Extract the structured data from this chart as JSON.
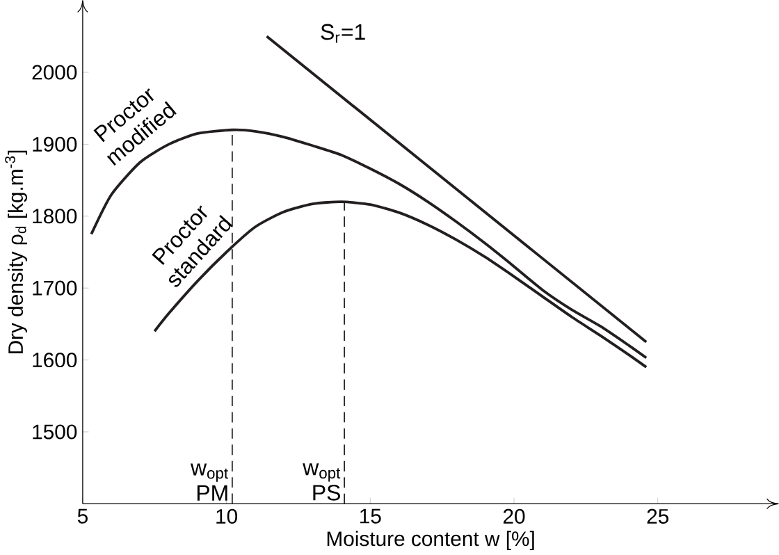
{
  "chart_data": {
    "type": "line",
    "xlabel": "Moisture content w [%]",
    "ylabel": "Dry density ρ$_{d}$ [kg.m$^{-3}$]",
    "xlim": [
      5,
      29.2
    ],
    "ylim": [
      1400,
      2100
    ],
    "xticks": [
      5,
      10,
      15,
      20,
      25
    ],
    "yticks": [
      1500,
      1600,
      1700,
      1800,
      1900,
      2000
    ],
    "grid": false,
    "marker": "none",
    "series": [
      {
        "name": "Proctor modified",
        "color": "#231f20",
        "x": [
          5.3,
          6,
          7,
          8,
          9,
          10.2,
          11,
          12,
          13,
          14,
          15,
          16,
          17,
          18,
          19,
          20,
          21,
          22,
          23,
          24,
          24.6
        ],
        "values": [
          1775,
          1830,
          1875,
          1900,
          1915,
          1920,
          1918,
          1910,
          1898,
          1885,
          1866,
          1845,
          1820,
          1792,
          1762,
          1730,
          1697,
          1670,
          1647,
          1620,
          1603
        ]
      },
      {
        "name": "Proctor standard",
        "color": "#231f20",
        "x": [
          7.5,
          8,
          9,
          10,
          11,
          12,
          13,
          14,
          15,
          16,
          17,
          18,
          19,
          20,
          21,
          22,
          23,
          24,
          24.6
        ],
        "values": [
          1640,
          1665,
          1710,
          1750,
          1785,
          1806,
          1817,
          1820,
          1816,
          1805,
          1788,
          1767,
          1743,
          1716,
          1688,
          1660,
          1634,
          1607,
          1590
        ]
      },
      {
        "name": "S$_{r}$=1",
        "color": "#231f20",
        "x": [
          11.4,
          24.6
        ],
        "values": [
          2050,
          1625
        ]
      },
      {
        "color": "#231f20",
        "line_style": "dashed",
        "x": [
          10.2,
          10.2
        ],
        "values": [
          1400,
          1920
        ]
      },
      {
        "color": "#231f20",
        "line_style": "dashed",
        "x": [
          14.1,
          14.1
        ],
        "values": [
          1400,
          1820
        ]
      }
    ],
    "annotations": [
      "w$_{opt}$ PM",
      "w$_{opt}$ PS"
    ]
  }
}
